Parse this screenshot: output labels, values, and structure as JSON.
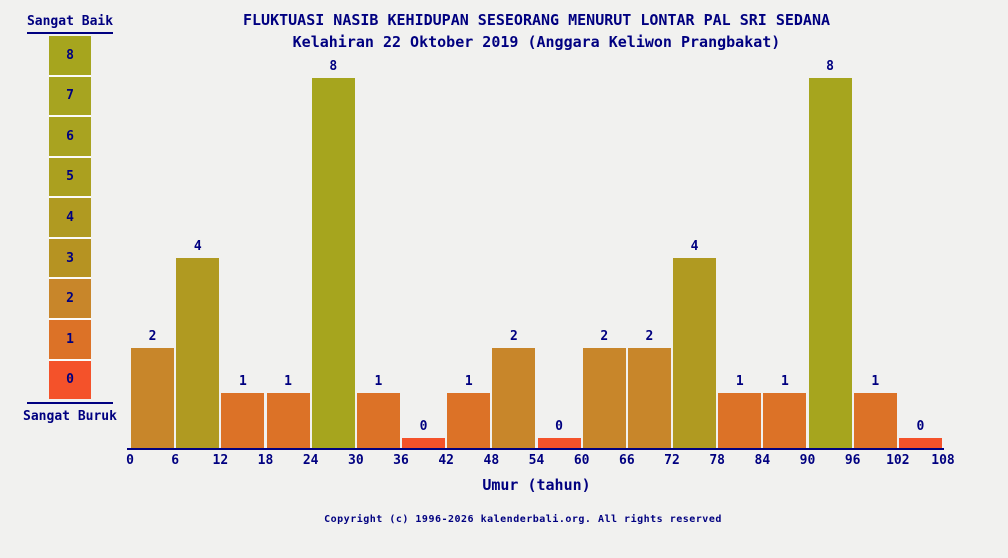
{
  "title": {
    "line1": "FLUKTUASI NASIB KEHIDUPAN SESEORANG MENURUT LONTAR PAL SRI SEDANA",
    "line2": "Kelahiran 22 Oktober 2019 (Anggara Keliwon Prangbakat)"
  },
  "legend": {
    "top_label": "Sangat Baik",
    "bottom_label": "Sangat Buruk",
    "cells": [
      {
        "label": "8",
        "color": "#a6a51e"
      },
      {
        "label": "7",
        "color": "#a7a420"
      },
      {
        "label": "6",
        "color": "#a9a320"
      },
      {
        "label": "5",
        "color": "#aba01f"
      },
      {
        "label": "4",
        "color": "#b09a21"
      },
      {
        "label": "3",
        "color": "#b69322"
      },
      {
        "label": "2",
        "color": "#c8862a"
      },
      {
        "label": "1",
        "color": "#dc7227"
      },
      {
        "label": "0",
        "color": "#f4522a"
      }
    ]
  },
  "chart_data": {
    "type": "bar",
    "title": "FLUKTUASI NASIB KEHIDUPAN SESEORANG MENURUT LONTAR PAL SRI SEDANA",
    "subtitle": "Kelahiran 22 Oktober 2019 (Anggara Keliwon Prangbakat)",
    "xlabel": "Umur (tahun)",
    "x_ticks": [
      0,
      6,
      12,
      18,
      24,
      30,
      36,
      42,
      48,
      54,
      60,
      66,
      72,
      78,
      84,
      90,
      96,
      102,
      108
    ],
    "age_bins": [
      "0-6",
      "6-12",
      "12-18",
      "18-24",
      "24-30",
      "30-36",
      "36-42",
      "42-48",
      "48-54",
      "54-60",
      "60-66",
      "66-72",
      "72-78",
      "78-84",
      "84-90",
      "90-96",
      "96-102",
      "102-108"
    ],
    "values": [
      2,
      4,
      1,
      1,
      8,
      1,
      0,
      1,
      2,
      0,
      2,
      2,
      4,
      1,
      1,
      8,
      1,
      0
    ],
    "ylim": [
      0,
      8
    ],
    "scale_top_meaning": "Sangat Baik",
    "scale_bottom_meaning": "Sangat Buruk",
    "value_colors": {
      "0": "#f4522a",
      "1": "#dc7227",
      "2": "#c8862a",
      "3": "#b69322",
      "4": "#b09a21",
      "5": "#aba01f",
      "6": "#a9a320",
      "7": "#a7a420",
      "8": "#a6a51e"
    },
    "axis_color": "#000080",
    "text_color": "#000080",
    "background": "#f1f1ef",
    "grid": false,
    "legend_position": "left"
  },
  "footer": {
    "copyright": "Copyright (c) 1996-2026 kalenderbali.org. All rights reserved"
  }
}
